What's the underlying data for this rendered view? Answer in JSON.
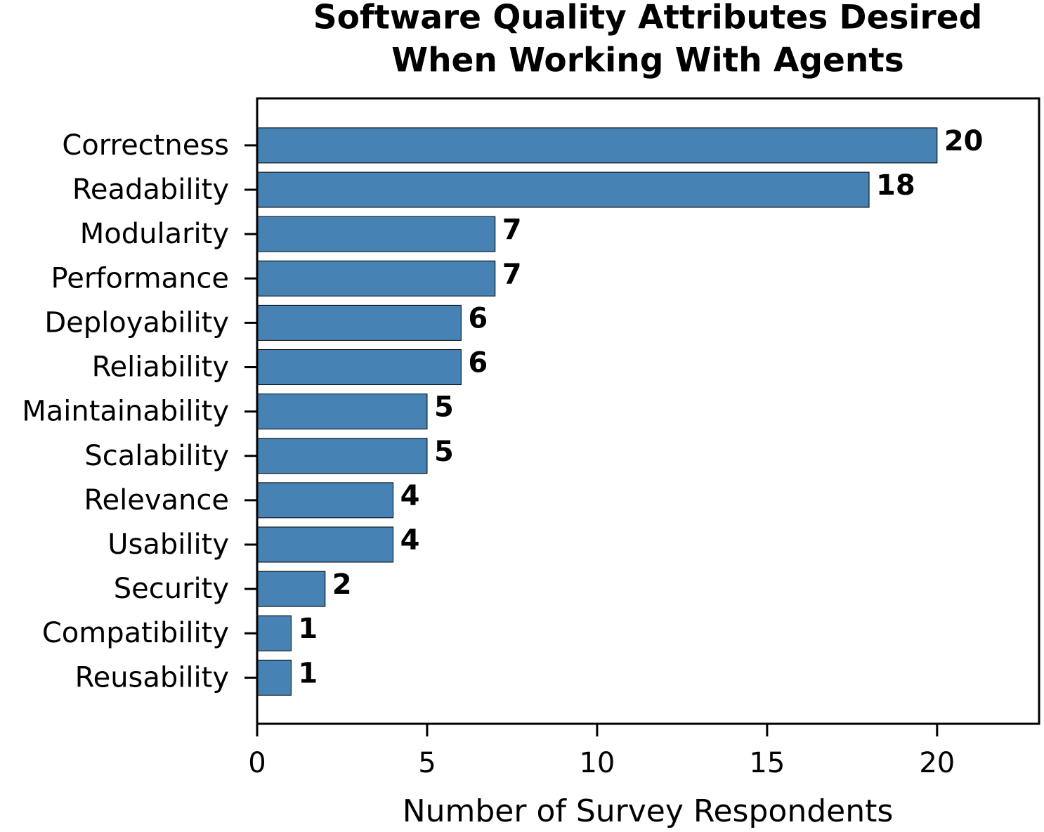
{
  "chart_data": {
    "type": "bar",
    "orientation": "horizontal",
    "title": [
      "Software Quality Attributes Desired",
      "When Working With Agents"
    ],
    "xlabel": "Number of Survey Respondents",
    "categories": [
      "Correctness",
      "Readability",
      "Modularity",
      "Performance",
      "Deployability",
      "Reliability",
      "Maintainability",
      "Scalability",
      "Relevance",
      "Usability",
      "Security",
      "Compatibility",
      "Reusability"
    ],
    "values": [
      20,
      18,
      7,
      7,
      6,
      6,
      5,
      5,
      4,
      4,
      2,
      1,
      1
    ],
    "color": "#4682b4",
    "xlim": [
      0,
      23
    ],
    "xticks": [
      0,
      5,
      10,
      15,
      20
    ],
    "grid": false
  }
}
